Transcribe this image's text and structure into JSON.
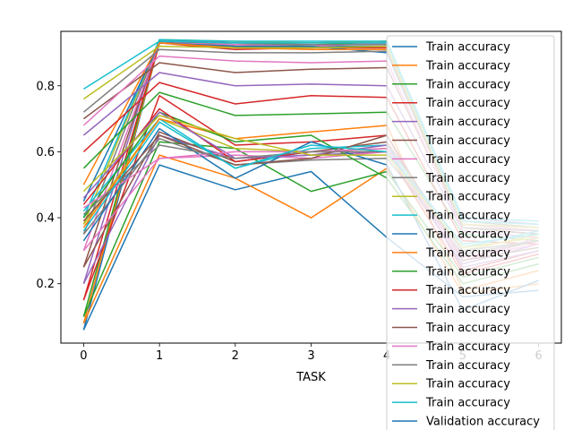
{
  "chart_data": {
    "type": "line",
    "xlabel": "TASK",
    "ylabel": "",
    "title": "",
    "x": [
      0,
      1,
      2,
      3,
      4,
      5,
      6
    ],
    "xlim": [
      -0.3,
      6.3
    ],
    "ylim": [
      0.02,
      0.965
    ],
    "x_ticks": [
      0,
      1,
      2,
      3,
      4,
      5,
      6
    ],
    "y_ticks": [
      0.2,
      0.4,
      0.6,
      0.8
    ],
    "y_tick_labels": [
      "0.2",
      "0.4",
      "0.6",
      "0.8"
    ],
    "grid": false,
    "legend_position": "right",
    "palette": [
      "#1f77b4",
      "#ff7f0e",
      "#2ca02c",
      "#d62728",
      "#9467bd",
      "#8c564b",
      "#e377c2",
      "#7f7f7f",
      "#bcbd22",
      "#17becf"
    ],
    "series": [
      {
        "name": "Train accuracy",
        "values": [
          0.06,
          0.93,
          0.915,
          0.92,
          0.92,
          0.38,
          0.37
        ]
      },
      {
        "name": "Train accuracy",
        "values": [
          0.08,
          0.93,
          0.92,
          0.925,
          0.925,
          0.37,
          0.36
        ]
      },
      {
        "name": "Train accuracy",
        "values": [
          0.1,
          0.935,
          0.925,
          0.925,
          0.93,
          0.39,
          0.37
        ]
      },
      {
        "name": "Train accuracy",
        "values": [
          0.15,
          0.93,
          0.91,
          0.915,
          0.915,
          0.38,
          0.36
        ]
      },
      {
        "name": "Train accuracy",
        "values": [
          0.2,
          0.94,
          0.93,
          0.93,
          0.935,
          0.4,
          0.38
        ]
      },
      {
        "name": "Train accuracy",
        "values": [
          0.25,
          0.935,
          0.92,
          0.915,
          0.92,
          0.37,
          0.35
        ]
      },
      {
        "name": "Train accuracy",
        "values": [
          0.3,
          0.93,
          0.925,
          0.92,
          0.93,
          0.38,
          0.36
        ]
      },
      {
        "name": "Train accuracy",
        "values": [
          0.35,
          0.935,
          0.93,
          0.925,
          0.925,
          0.39,
          0.37
        ]
      },
      {
        "name": "Train accuracy",
        "values": [
          0.38,
          0.94,
          0.935,
          0.93,
          0.935,
          0.39,
          0.38
        ]
      },
      {
        "name": "Train accuracy",
        "values": [
          0.4,
          0.94,
          0.935,
          0.935,
          0.935,
          0.4,
          0.39
        ]
      },
      {
        "name": "Train accuracy",
        "values": [
          0.45,
          0.93,
          0.92,
          0.92,
          0.9,
          0.37,
          0.35
        ]
      },
      {
        "name": "Train accuracy",
        "values": [
          0.5,
          0.93,
          0.915,
          0.91,
          0.91,
          0.36,
          0.34
        ]
      },
      {
        "name": "Train accuracy",
        "values": [
          0.55,
          0.78,
          0.71,
          0.715,
          0.72,
          0.35,
          0.33
        ]
      },
      {
        "name": "Train accuracy",
        "values": [
          0.6,
          0.81,
          0.745,
          0.77,
          0.765,
          0.33,
          0.32
        ]
      },
      {
        "name": "Train accuracy",
        "values": [
          0.65,
          0.84,
          0.8,
          0.805,
          0.8,
          0.36,
          0.34
        ]
      },
      {
        "name": "Train accuracy",
        "values": [
          0.7,
          0.87,
          0.84,
          0.85,
          0.855,
          0.37,
          0.35
        ]
      },
      {
        "name": "Train accuracy",
        "values": [
          0.68,
          0.89,
          0.875,
          0.87,
          0.875,
          0.36,
          0.34
        ]
      },
      {
        "name": "Train accuracy",
        "values": [
          0.72,
          0.91,
          0.9,
          0.9,
          0.905,
          0.37,
          0.36
        ]
      },
      {
        "name": "Train accuracy",
        "values": [
          0.76,
          0.92,
          0.915,
          0.915,
          0.92,
          0.38,
          0.37
        ]
      },
      {
        "name": "Train accuracy",
        "values": [
          0.79,
          0.935,
          0.93,
          0.93,
          0.93,
          0.39,
          0.38
        ]
      },
      {
        "name": "Validation accuracy",
        "values": [
          0.06,
          0.56,
          0.485,
          0.54,
          0.34,
          0.16,
          0.18
        ]
      },
      {
        "name": "Validation accuracy",
        "values": [
          0.08,
          0.59,
          0.52,
          0.4,
          0.55,
          0.17,
          0.2
        ]
      },
      {
        "name": "Validation accuracy",
        "values": [
          0.1,
          0.63,
          0.61,
          0.48,
          0.54,
          0.22,
          0.28
        ]
      },
      {
        "name": "Validation accuracy",
        "values": [
          0.15,
          0.77,
          0.62,
          0.63,
          0.65,
          0.24,
          0.3
        ]
      },
      {
        "name": "Validation accuracy",
        "values": [
          0.2,
          0.65,
          0.58,
          0.59,
          0.6,
          0.26,
          0.32
        ]
      },
      {
        "name": "Validation accuracy",
        "values": [
          0.25,
          0.66,
          0.57,
          0.6,
          0.63,
          0.28,
          0.33
        ]
      },
      {
        "name": "Validation accuracy",
        "values": [
          0.3,
          0.58,
          0.59,
          0.58,
          0.6,
          0.27,
          0.34
        ]
      },
      {
        "name": "Validation accuracy",
        "values": [
          0.35,
          0.64,
          0.56,
          0.575,
          0.58,
          0.29,
          0.33
        ]
      },
      {
        "name": "Validation accuracy",
        "values": [
          0.38,
          0.7,
          0.61,
          0.6,
          0.61,
          0.3,
          0.35
        ]
      },
      {
        "name": "Validation accuracy",
        "values": [
          0.42,
          0.7,
          0.55,
          0.61,
          0.62,
          0.31,
          0.36
        ]
      },
      {
        "name": "Validation accuracy",
        "values": [
          0.33,
          0.67,
          0.52,
          0.63,
          0.56,
          0.12,
          0.21
        ]
      },
      {
        "name": "Validation accuracy",
        "values": [
          0.37,
          0.7,
          0.64,
          0.66,
          0.68,
          0.18,
          0.24
        ]
      },
      {
        "name": "Validation accuracy",
        "values": [
          0.4,
          0.72,
          0.63,
          0.65,
          0.52,
          0.2,
          0.26
        ]
      },
      {
        "name": "Validation accuracy",
        "values": [
          0.44,
          0.73,
          0.57,
          0.6,
          0.6,
          0.23,
          0.29
        ]
      },
      {
        "name": "Validation accuracy",
        "values": [
          0.46,
          0.72,
          0.58,
          0.59,
          0.62,
          0.25,
          0.3
        ]
      },
      {
        "name": "Validation accuracy",
        "values": [
          0.39,
          0.65,
          0.56,
          0.58,
          0.65,
          0.27,
          0.31
        ]
      },
      {
        "name": "Validation accuracy",
        "values": [
          0.43,
          0.58,
          0.6,
          0.6,
          0.61,
          0.28,
          0.32
        ]
      },
      {
        "name": "Validation accuracy",
        "values": [
          0.41,
          0.62,
          0.58,
          0.6,
          0.6,
          0.3,
          0.33
        ]
      },
      {
        "name": "Validation accuracy",
        "values": [
          0.48,
          0.71,
          0.64,
          0.59,
          0.59,
          0.31,
          0.34
        ]
      },
      {
        "name": "Validation accuracy",
        "values": [
          0.36,
          0.69,
          0.55,
          0.62,
          0.6,
          0.32,
          0.35
        ]
      }
    ]
  }
}
